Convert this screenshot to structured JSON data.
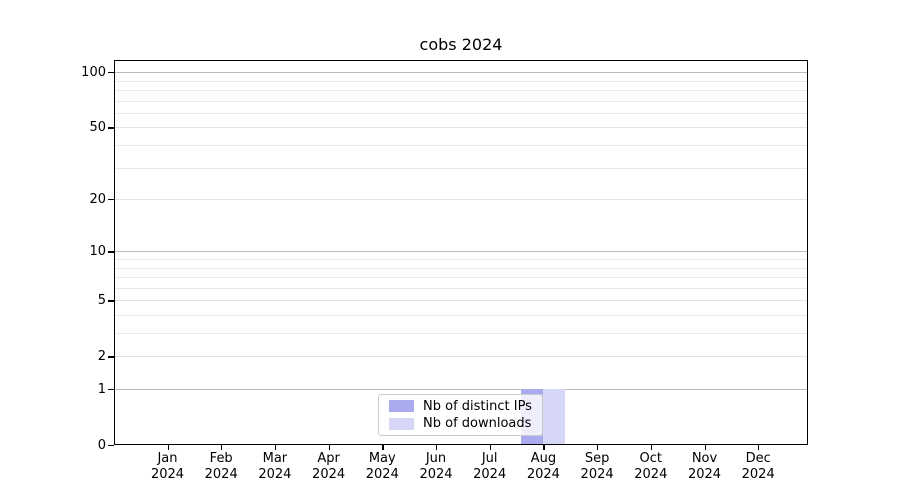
{
  "chart_data": {
    "type": "bar",
    "title": "cobs 2024",
    "categories": [
      "Jan 2024",
      "Feb 2024",
      "Mar 2024",
      "Apr 2024",
      "May 2024",
      "Jun 2024",
      "Jul 2024",
      "Aug 2024",
      "Sep 2024",
      "Oct 2024",
      "Nov 2024",
      "Dec 2024"
    ],
    "series": [
      {
        "name": "Nb of distinct IPs",
        "color": "#aaaaee",
        "values": [
          0,
          0,
          0,
          0,
          0,
          0,
          0,
          1,
          0,
          0,
          0,
          0
        ]
      },
      {
        "name": "Nb of downloads",
        "color": "#d6d6f6",
        "values": [
          0,
          0,
          0,
          0,
          0,
          0,
          0,
          1,
          0,
          0,
          0,
          0
        ]
      }
    ],
    "xlabel": "",
    "ylabel": "",
    "yscale": "log1p",
    "y_ticks": [
      0,
      1,
      2,
      5,
      10,
      20,
      50,
      100
    ],
    "y_minor_gridlines": [
      3,
      4,
      6,
      7,
      8,
      9,
      30,
      40,
      60,
      70,
      80,
      90
    ],
    "ylim": [
      0,
      116
    ],
    "grid": true,
    "legend_position": "lower center"
  },
  "colors": {
    "major_grid": "#bdbdbd",
    "minor_grid": "#e9e9e9",
    "spine": "#000000",
    "background": "#ffffff"
  }
}
